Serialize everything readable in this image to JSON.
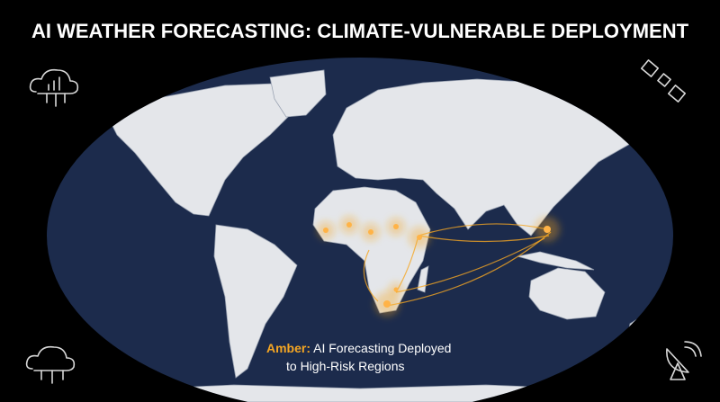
{
  "header": {
    "title": "AI WEATHER FORECASTING: CLIMATE-VULNERABLE DEPLOYMENT"
  },
  "legend": {
    "key": "Amber:",
    "line1": "AI Forecasting Deployed",
    "line2": "to High-Risk Regions"
  }
}
